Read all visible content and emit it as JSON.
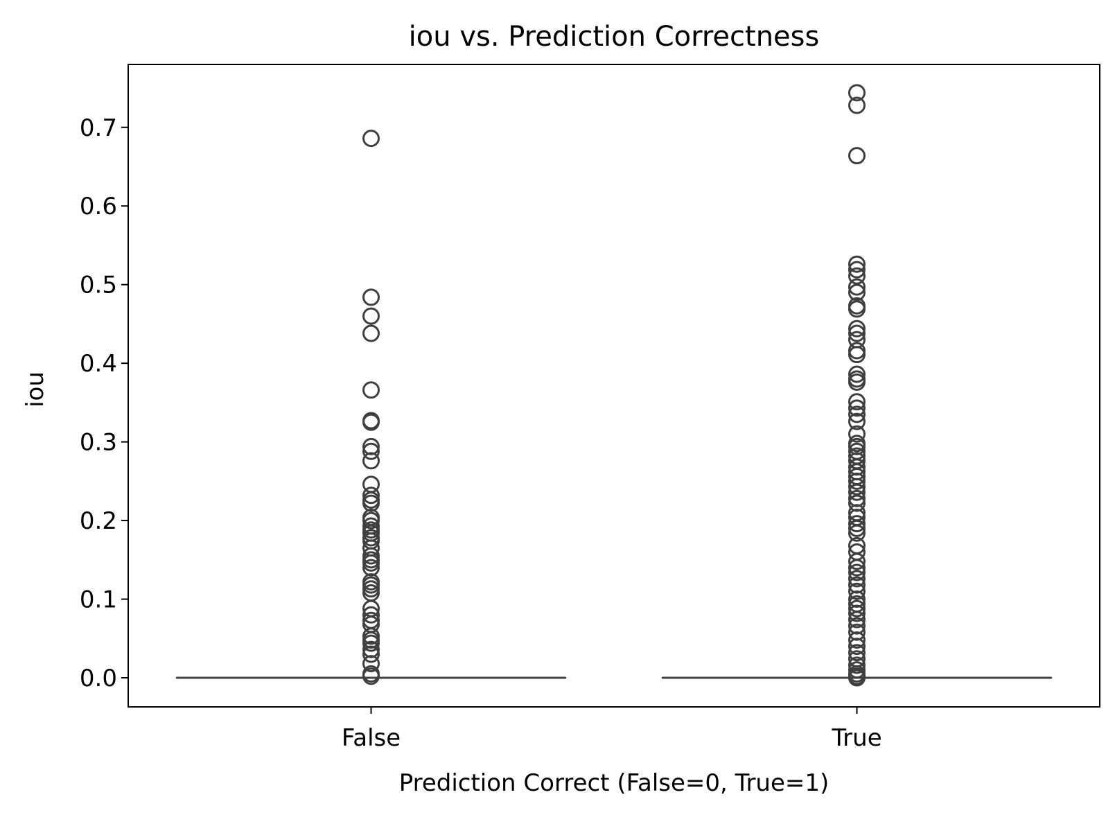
{
  "chart_data": {
    "type": "box",
    "title": "iou vs. Prediction Correctness",
    "xlabel": "Prediction Correct (False=0, True=1)",
    "ylabel": "iou",
    "ylim": [
      -0.037,
      0.78
    ],
    "yticks": [
      0.0,
      0.1,
      0.2,
      0.3,
      0.4,
      0.5,
      0.6,
      0.7
    ],
    "ytick_labels": [
      "0.0",
      "0.1",
      "0.2",
      "0.3",
      "0.4",
      "0.5",
      "0.6",
      "0.7"
    ],
    "categories": [
      "False",
      "True"
    ],
    "grid": false,
    "colors": {
      "box": "#3f3f3f",
      "axes": "#000000"
    },
    "boxes": [
      {
        "category": "False",
        "q1": 0.0,
        "median": 0.0,
        "q3": 0.0,
        "whisker_low": 0.0,
        "whisker_high": 0.0
      },
      {
        "category": "True",
        "q1": 0.0,
        "median": 0.0,
        "q3": 0.0,
        "whisker_low": 0.0,
        "whisker_high": 0.0
      }
    ],
    "outliers": [
      {
        "category": "False",
        "values": [
          0.686,
          0.484,
          0.46,
          0.438,
          0.366,
          0.327,
          0.325,
          0.294,
          0.288,
          0.276,
          0.246,
          0.232,
          0.226,
          0.222,
          0.204,
          0.2,
          0.193,
          0.188,
          0.184,
          0.178,
          0.174,
          0.165,
          0.155,
          0.15,
          0.146,
          0.14,
          0.122,
          0.118,
          0.113,
          0.108,
          0.088,
          0.08,
          0.073,
          0.068,
          0.053,
          0.048,
          0.044,
          0.036,
          0.03,
          0.018,
          0.005,
          0.002
        ]
      },
      {
        "category": "True",
        "values": [
          0.744,
          0.728,
          0.664,
          0.526,
          0.519,
          0.511,
          0.497,
          0.49,
          0.473,
          0.469,
          0.444,
          0.438,
          0.43,
          0.416,
          0.411,
          0.386,
          0.38,
          0.376,
          0.351,
          0.343,
          0.335,
          0.326,
          0.31,
          0.298,
          0.294,
          0.288,
          0.282,
          0.276,
          0.268,
          0.262,
          0.256,
          0.25,
          0.243,
          0.236,
          0.228,
          0.222,
          0.21,
          0.204,
          0.196,
          0.19,
          0.184,
          0.168,
          0.16,
          0.148,
          0.14,
          0.134,
          0.126,
          0.118,
          0.11,
          0.1,
          0.094,
          0.088,
          0.082,
          0.074,
          0.066,
          0.058,
          0.048,
          0.04,
          0.032,
          0.024,
          0.016,
          0.01,
          0.005,
          0.002,
          0.0
        ]
      }
    ]
  }
}
